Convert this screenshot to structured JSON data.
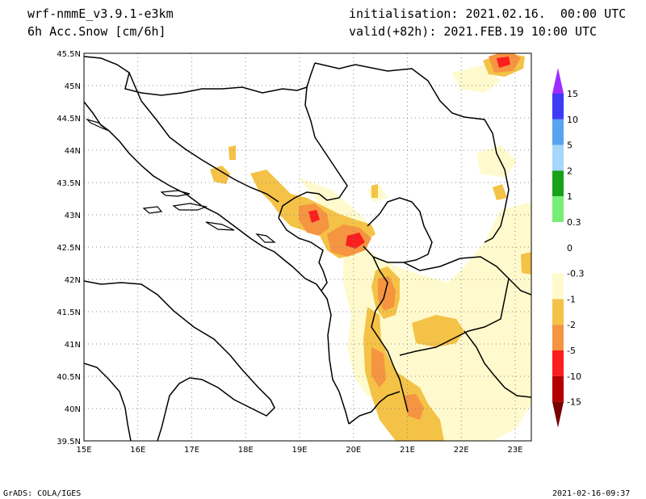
{
  "header": {
    "model": "wrf-nmmE_v3.9.1-e3km",
    "field": "6h Acc.Snow [cm/6h]",
    "init": "initialisation: 2021.02.16.  00:00 UTC",
    "valid": "valid(+82h): 2021.FEB.19 10:00 UTC"
  },
  "map": {
    "lat_ticks": [
      "45.5N",
      "45N",
      "44.5N",
      "44N",
      "43.5N",
      "43N",
      "42.5N",
      "42N",
      "41.5N",
      "41N",
      "40.5N",
      "40N",
      "39.5N"
    ],
    "lon_ticks": [
      "15E",
      "16E",
      "17E",
      "18E",
      "19E",
      "20E",
      "21E",
      "22E",
      "23E"
    ],
    "lat_range": [
      39.5,
      45.5
    ],
    "lon_range": [
      15,
      23.3
    ],
    "grid": true
  },
  "legend": {
    "levels": [
      "15",
      "10",
      "5",
      "2",
      "1",
      "0.3",
      "0",
      "-0.3",
      "-1",
      "-2",
      "-5",
      "-10",
      "-15"
    ],
    "colors": [
      "#9f2bff",
      "#3c3cf5",
      "#56a4ee",
      "#a6d6fa",
      "#19a019",
      "#77ee77",
      "#ffffff",
      "#ffffff",
      "#fffacd",
      "#f4c246",
      "#f59441",
      "#fa1e1e",
      "#b40000",
      "#780000"
    ]
  },
  "footer": {
    "left": "GrADS: COLA/IGES",
    "right": "2021-02-16-09:37"
  }
}
